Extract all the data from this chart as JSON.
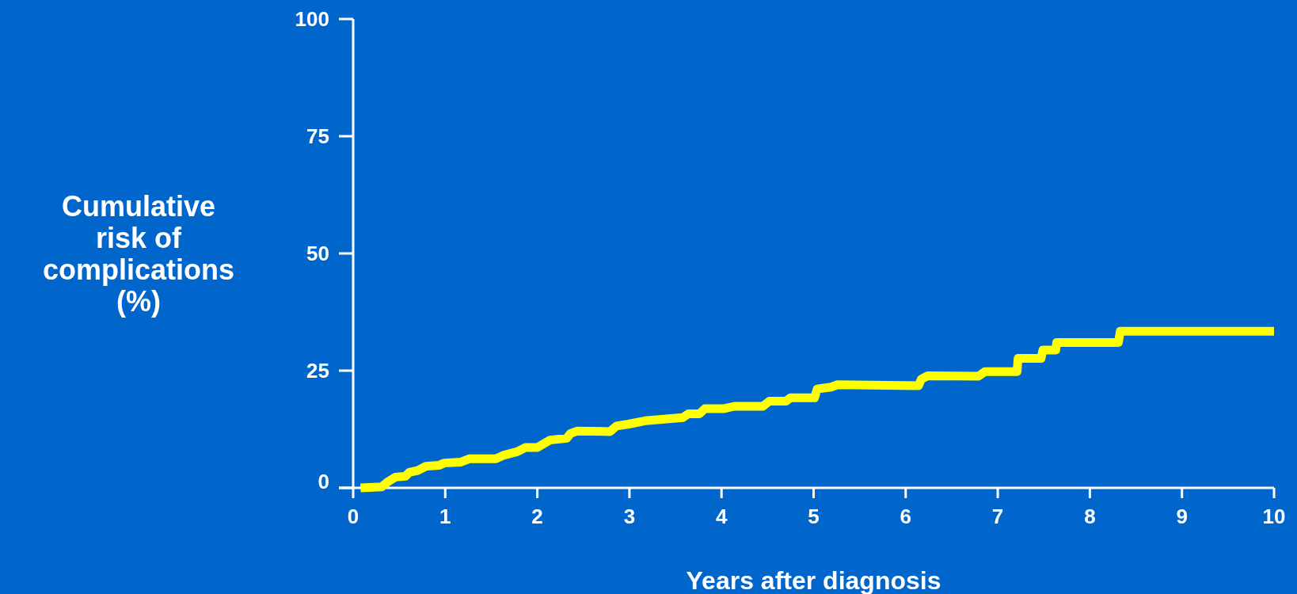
{
  "chart_data": {
    "type": "line",
    "xlabel": "Years after diagnosis",
    "ylabel": "Cumulative risk of complications (%)",
    "xlim": [
      0,
      10
    ],
    "ylim": [
      0,
      100
    ],
    "xticks": [
      0,
      1,
      2,
      3,
      4,
      5,
      6,
      7,
      8,
      9,
      10
    ],
    "yticks": [
      0,
      25,
      50,
      75,
      100
    ],
    "grid": false,
    "marker": "none",
    "line_style": "solid",
    "series": [
      {
        "color": "#ffff00",
        "x": [
          0.08,
          0.31,
          0.37,
          0.46,
          0.57,
          0.61,
          0.7,
          0.79,
          0.93,
          0.99,
          1.17,
          1.26,
          1.55,
          1.64,
          1.78,
          1.87,
          2.0,
          2.14,
          2.32,
          2.36,
          2.43,
          2.79,
          2.86,
          2.99,
          3.17,
          3.58,
          3.64,
          3.76,
          3.82,
          4.03,
          4.14,
          4.45,
          4.52,
          4.7,
          4.75,
          5.01,
          5.04,
          5.19,
          5.26,
          6.14,
          6.17,
          6.24,
          6.79,
          6.86,
          7.21,
          7.22,
          7.47,
          7.49,
          7.63,
          7.64,
          8.31,
          8.33,
          10.0
        ],
        "values": [
          0,
          0.2,
          1.2,
          2.3,
          2.5,
          3.3,
          3.7,
          4.6,
          4.8,
          5.3,
          5.5,
          6.2,
          6.2,
          7.0,
          7.7,
          8.6,
          8.6,
          10.2,
          10.6,
          11.6,
          12.1,
          12.0,
          13.2,
          13.6,
          14.3,
          15.0,
          15.8,
          15.8,
          16.9,
          16.9,
          17.4,
          17.4,
          18.5,
          18.5,
          19.2,
          19.2,
          21.1,
          21.5,
          22.0,
          21.8,
          23.2,
          23.9,
          23.8,
          24.8,
          24.8,
          27.6,
          27.6,
          29.4,
          29.4,
          31.0,
          31.0,
          33.4,
          33.4
        ]
      }
    ]
  }
}
